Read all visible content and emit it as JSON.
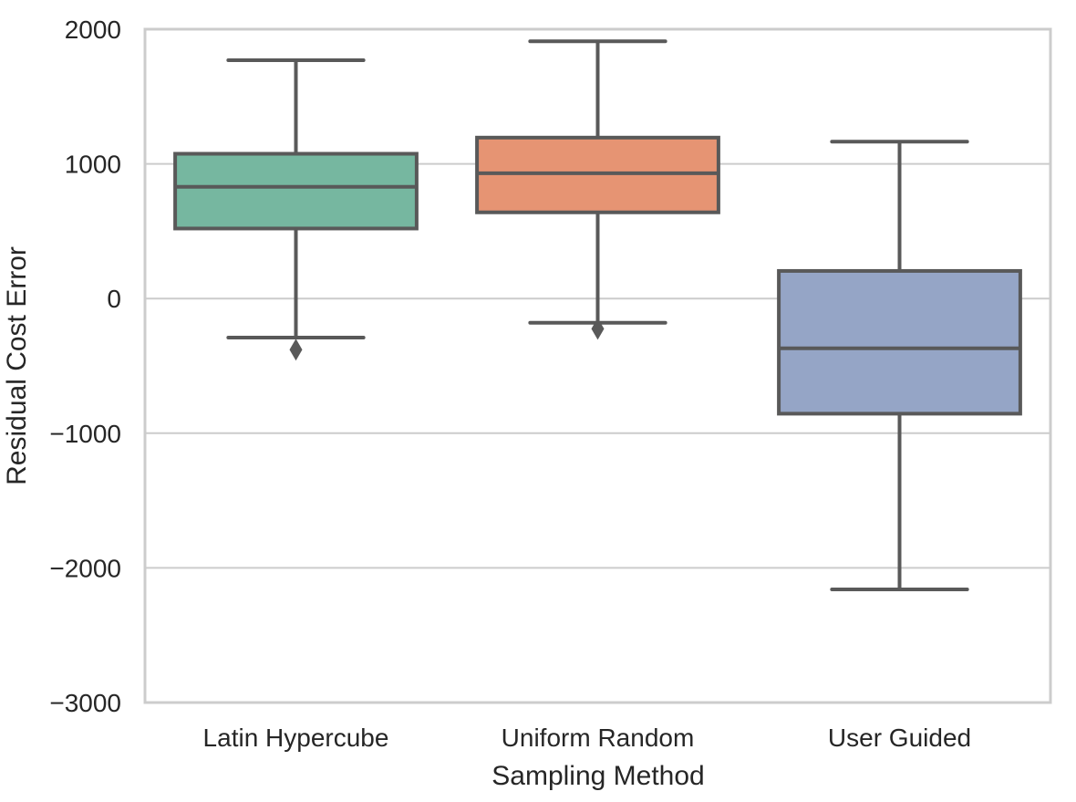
{
  "chart_data": {
    "type": "box",
    "title": "",
    "xlabel": "Sampling Method",
    "ylabel": "Residual Cost Error",
    "ylim": [
      -3000,
      2000
    ],
    "yticks": [
      2000,
      1000,
      0,
      -1000,
      -2000,
      -3000
    ],
    "ytick_labels": [
      "2000",
      "1000",
      "0",
      "−1000",
      "−2000",
      "−3000"
    ],
    "grid": "horizontal",
    "categories": [
      "Latin Hypercube",
      "Uniform Random",
      "User Guided"
    ],
    "boxes": [
      {
        "category": "Latin Hypercube",
        "color": "#76b7a0",
        "whisker_low": -290,
        "q1": 520,
        "median": 830,
        "q3": 1075,
        "whisker_high": 1770,
        "outliers": [
          -380
        ]
      },
      {
        "category": "Uniform Random",
        "color": "#e69473",
        "whisker_low": -180,
        "q1": 640,
        "median": 930,
        "q3": 1195,
        "whisker_high": 1910,
        "outliers": [
          -225
        ]
      },
      {
        "category": "User Guided",
        "color": "#95a5c6",
        "whisker_low": -2160,
        "q1": -855,
        "median": -370,
        "q3": 205,
        "whisker_high": 1165,
        "outliers": []
      }
    ]
  }
}
